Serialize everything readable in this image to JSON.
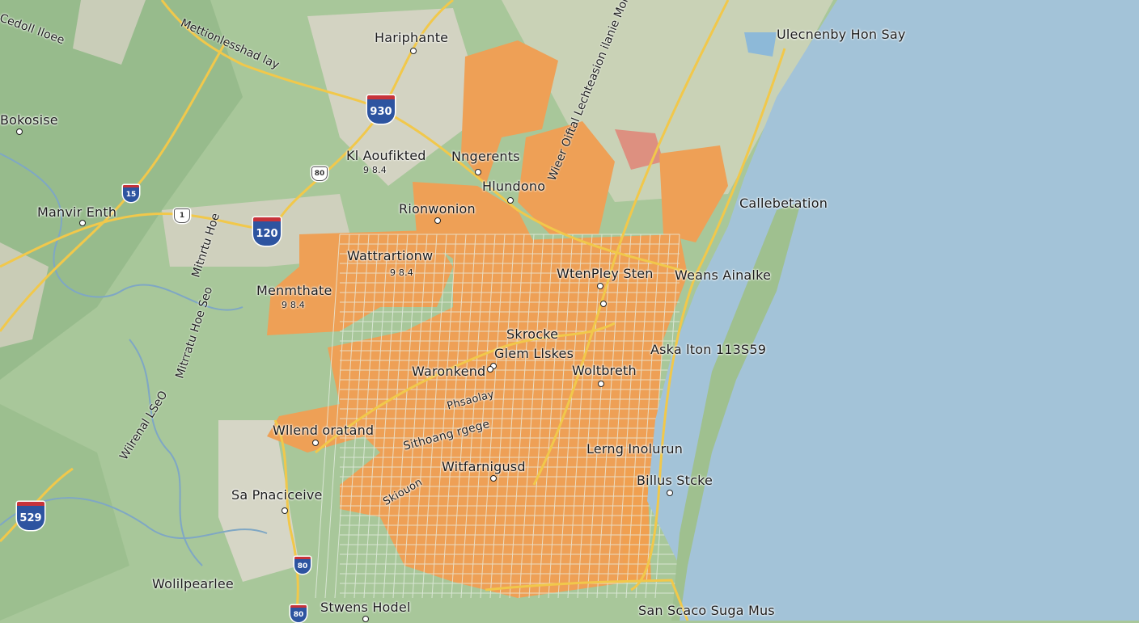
{
  "colors": {
    "land": "#a8c79a",
    "forest": "#8fb585",
    "urban": "#eea056",
    "water": "#a3c3d8",
    "road": "#f1c84b",
    "shield": "#2d54a0"
  },
  "places": {
    "hariphante": "Hariphante",
    "bokosise": "Bokosise",
    "kl_aoufikted": "Kl Aoufikted",
    "kl_aoufikted_sub": "9 8.4",
    "nngerents": "Nngerents",
    "hlundono": "Hlundono",
    "rionwonion": "Rionwonion",
    "manvir_enth": "Manvir Enth",
    "wattrartionw": "Wattrartionw",
    "wattrartionw_sub": "9 8.4",
    "menmthate": "Menmthate",
    "menmthate_sub": "9 8.4",
    "wtenpley_sten": "WtenPley Sten",
    "weans_ainalke": "Weans Ainalke",
    "callebetation": "Callebetation",
    "ulecnenby": "Ulecnenby Hon Say",
    "skrocke": "Skrocke",
    "glem_llskes": "Glem Llskes",
    "aska": "Aska lton 113S59",
    "waronkend": "Waronkend",
    "woltbreth": "Woltbreth",
    "wllend": "Wllend oratand",
    "sithoang": "Sithoang rgege",
    "phsaolay": "Phsaolay",
    "witfarnigusd": "Witfarnigusd",
    "skiouon": "Skiouon",
    "lerng": "Lerng Inolurun",
    "billus": "Billus Stcke",
    "sa_pnaciceive": "Sa Pnaciceive",
    "wolilpearlee": "Wolilpearlee",
    "stwens": "Stwens Hodel",
    "san_scaco": "San Scaco Suga Mus",
    "cedil": "Cedoll Iloee"
  },
  "road_labels": {
    "mettion": "Mettionlesshad lay",
    "mitnrtu": "Mitnrtu Hoe",
    "mitrratu": "Mitrratu Hoe Seo",
    "wilrenal": "Wilrenal LSeO",
    "wieer": "Wieer Oiftal Lechteasion ilanie Monnis"
  },
  "shields": {
    "i930": "930",
    "i120": "120",
    "i529": "529",
    "i15": "15",
    "r80a": "80",
    "r1": "1",
    "r80b": "80",
    "r80c": "80"
  }
}
